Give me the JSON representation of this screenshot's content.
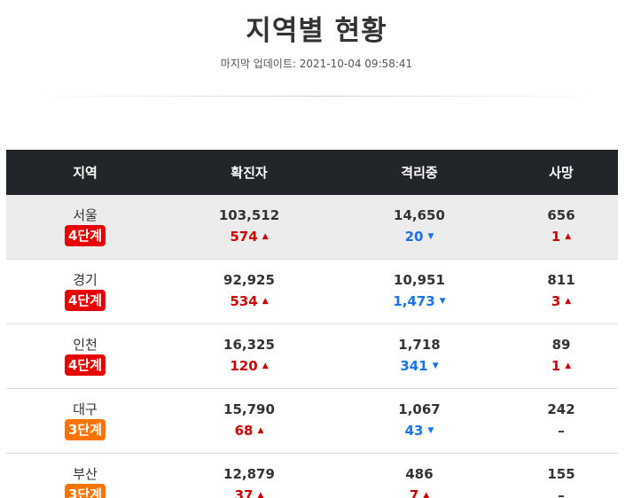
{
  "header": {
    "title": "지역별 현황",
    "updated": "마지막 업데이트: 2021-10-04 09:58:41"
  },
  "table": {
    "columns": [
      "지역",
      "확진자",
      "격리중",
      "사망"
    ],
    "rows": [
      {
        "region": "서울",
        "level": "4단계",
        "level_color": "#e60000",
        "confirmed": "103,512",
        "confirmed_delta": "574",
        "confirmed_dir": "up",
        "isolated": "14,650",
        "isolated_delta": "20",
        "isolated_dir": "down",
        "deaths": "656",
        "deaths_delta": "1",
        "deaths_dir": "up"
      },
      {
        "region": "경기",
        "level": "4단계",
        "level_color": "#e60000",
        "confirmed": "92,925",
        "confirmed_delta": "534",
        "confirmed_dir": "up",
        "isolated": "10,951",
        "isolated_delta": "1,473",
        "isolated_dir": "down",
        "deaths": "811",
        "deaths_delta": "3",
        "deaths_dir": "up"
      },
      {
        "region": "인천",
        "level": "4단계",
        "level_color": "#e60000",
        "confirmed": "16,325",
        "confirmed_delta": "120",
        "confirmed_dir": "up",
        "isolated": "1,718",
        "isolated_delta": "341",
        "isolated_dir": "down",
        "deaths": "89",
        "deaths_delta": "1",
        "deaths_dir": "up"
      },
      {
        "region": "대구",
        "level": "3단계",
        "level_color": "#ff7300",
        "confirmed": "15,790",
        "confirmed_delta": "68",
        "confirmed_dir": "up",
        "isolated": "1,067",
        "isolated_delta": "43",
        "isolated_dir": "down",
        "deaths": "242",
        "deaths_delta": "–",
        "deaths_dir": "none"
      },
      {
        "region": "부산",
        "level": "3단계",
        "level_color": "#ff7300",
        "confirmed": "12,879",
        "confirmed_delta": "37",
        "confirmed_dir": "up",
        "isolated": "486",
        "isolated_delta": "7",
        "isolated_dir": "up",
        "deaths": "155",
        "deaths_delta": "–",
        "deaths_dir": "none"
      }
    ]
  },
  "icons": {
    "up": "caret-up-icon",
    "down": "caret-down-icon"
  },
  "colors": {
    "up": "#cc0000",
    "down": "#1a73e8",
    "header_bg": "#222529"
  }
}
